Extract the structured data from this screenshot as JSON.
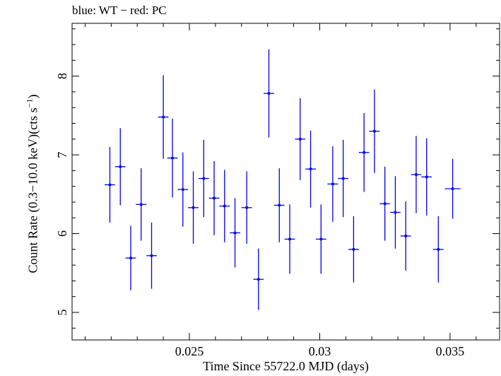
{
  "chart_data": {
    "type": "scatter",
    "title": "blue: WT − red: PC",
    "xlabel": "Time Since 55722.0 MJD (days)",
    "ylabel_main": "Count Rate (0.3−10.0 keV)(cts s",
    "ylabel_sup": "−1",
    "ylabel_tail": ")",
    "xlim": [
      0.0205,
      0.0369
    ],
    "ylim": [
      4.65,
      8.67
    ],
    "xticks": [
      0.025,
      0.03,
      0.035
    ],
    "xtick_labels": [
      "0.025",
      "0.03",
      "0.035"
    ],
    "yticks": [
      5,
      6,
      7,
      8
    ],
    "ytick_labels": [
      "5",
      "6",
      "7",
      "8"
    ],
    "grid": false,
    "series": [
      {
        "color": "#0000ee",
        "x": [
          0.02195,
          0.02235,
          0.02275,
          0.02315,
          0.02355,
          0.024,
          0.02435,
          0.02475,
          0.02515,
          0.02555,
          0.02595,
          0.02635,
          0.02675,
          0.0272,
          0.02765,
          0.02805,
          0.02845,
          0.02885,
          0.02925,
          0.02965,
          0.03005,
          0.0305,
          0.0309,
          0.0313,
          0.0317,
          0.0321,
          0.0325,
          0.0329,
          0.0333,
          0.0337,
          0.0341,
          0.03455,
          0.0351
        ],
        "xerr": [
          0.0002,
          0.0002,
          0.0002,
          0.0002,
          0.0002,
          0.0002,
          0.0002,
          0.0002,
          0.0002,
          0.0002,
          0.0002,
          0.0002,
          0.0002,
          0.0002,
          0.0002,
          0.0002,
          0.0002,
          0.0002,
          0.0002,
          0.0002,
          0.0002,
          0.0002,
          0.0002,
          0.0002,
          0.0002,
          0.0002,
          0.0002,
          0.0002,
          0.0002,
          0.0002,
          0.0002,
          0.0002,
          0.0003
        ],
        "y": [
          6.62,
          6.85,
          5.69,
          6.37,
          5.72,
          7.48,
          6.96,
          6.56,
          6.33,
          6.7,
          6.45,
          6.35,
          6.01,
          6.33,
          5.42,
          7.78,
          6.36,
          5.93,
          7.2,
          6.82,
          5.93,
          6.63,
          6.7,
          5.8,
          7.03,
          7.3,
          6.38,
          6.27,
          5.97,
          6.75,
          6.72,
          5.8,
          6.57
        ],
        "yerr": [
          0.48,
          0.49,
          0.41,
          0.46,
          0.42,
          0.53,
          0.5,
          0.47,
          0.46,
          0.49,
          0.47,
          0.46,
          0.44,
          0.46,
          0.39,
          0.56,
          0.47,
          0.44,
          0.52,
          0.49,
          0.44,
          0.48,
          0.49,
          0.42,
          0.5,
          0.53,
          0.47,
          0.46,
          0.44,
          0.49,
          0.49,
          0.42,
          0.38
        ]
      }
    ]
  }
}
